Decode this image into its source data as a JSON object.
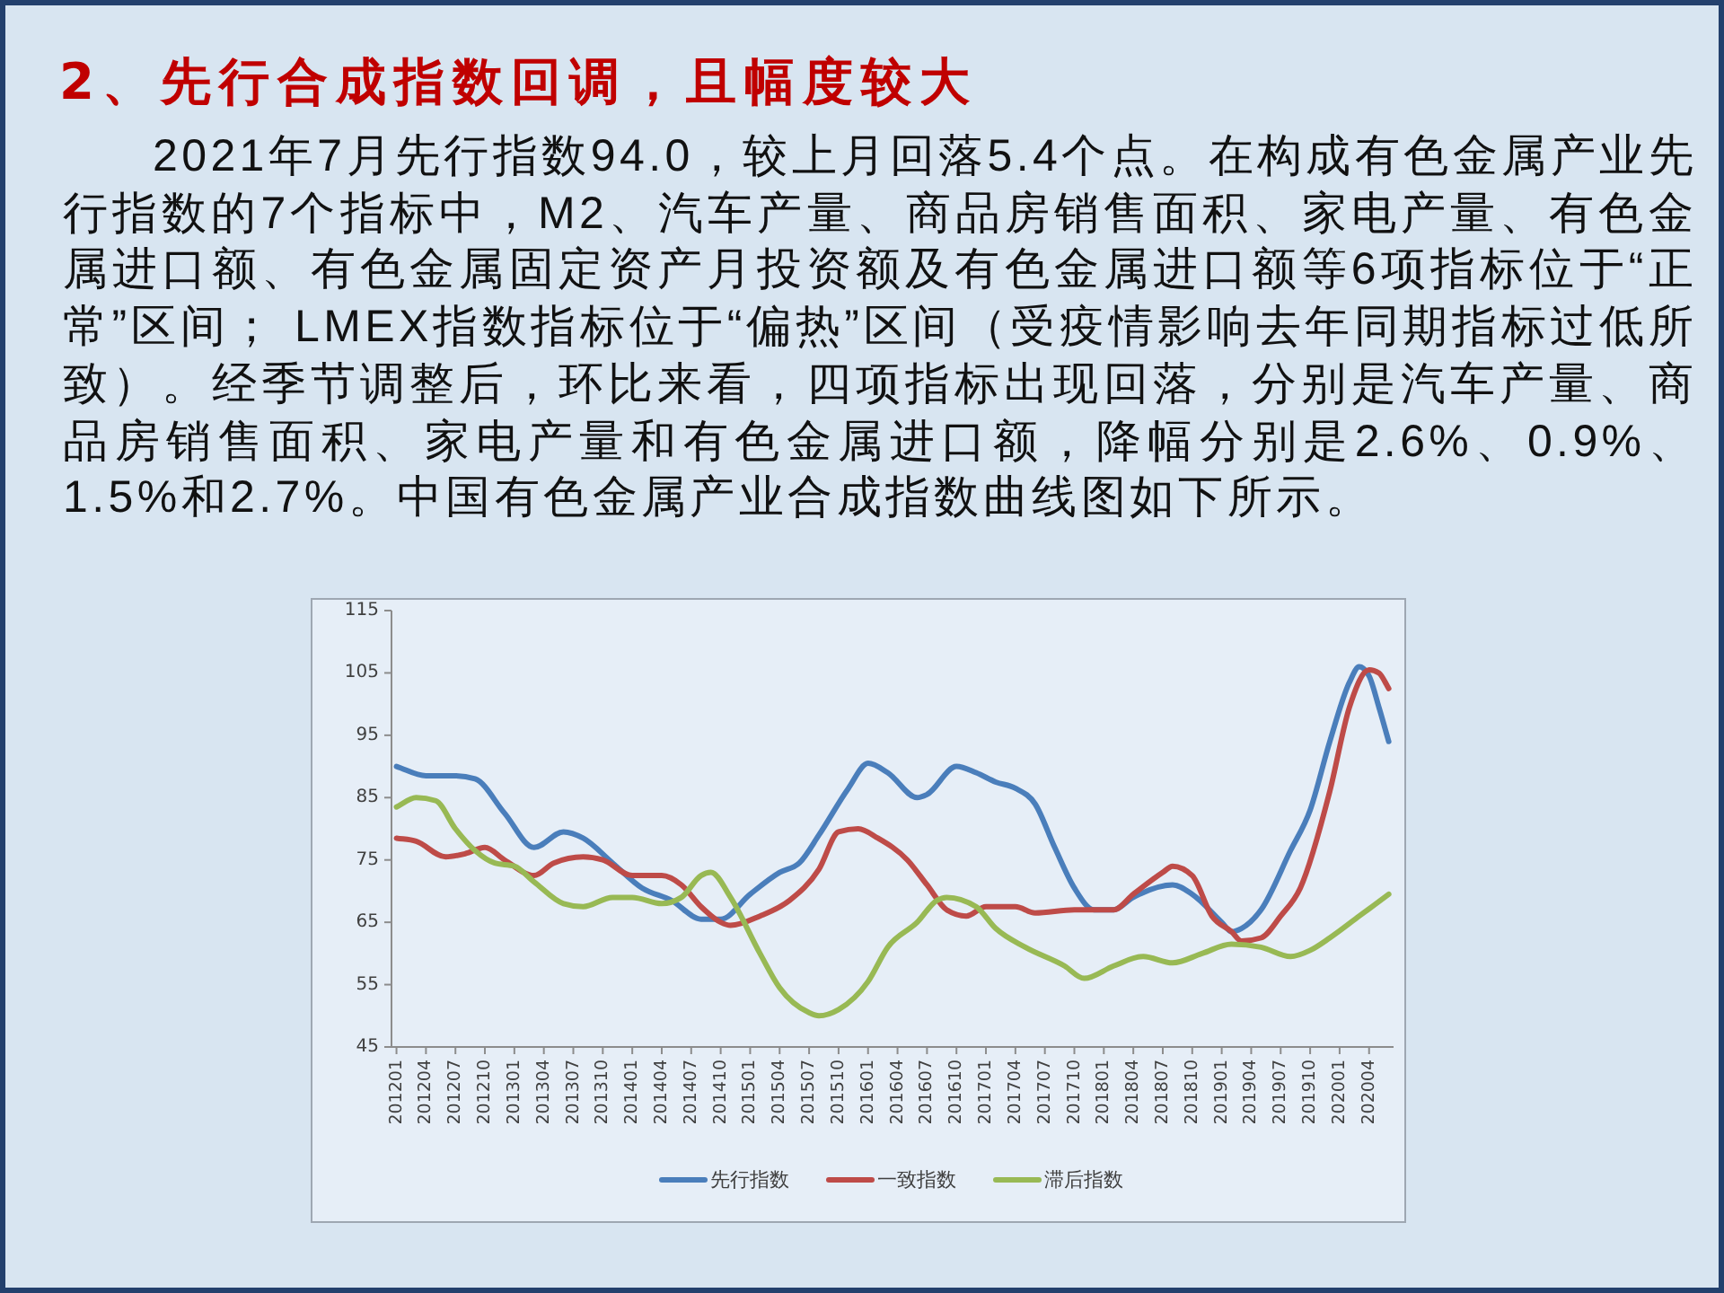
{
  "chart_data": {
    "type": "line",
    "title": "2、先行合成指数回调，且幅度较大",
    "annotations": [
      "2021年7月先行指数94.0，较上月回落5.4个点。在构成有色金属产业先行指数的7个指标中，M2、汽车产量、商品房销售面积、家电产量、有色金属进口额、有色金属固定资产月投资额及有色金属进口额等6项指标位于“正常”区间； LMEX指数指标位于“偏热”区间（受疫情影响去年同期指标过低所致）。经季节调整后，环比来看，四项指标出现回落，分别是汽车产量、商品房销售面积、家电产量和有色金属进口额，降幅分别是2.6%、0.9%、1.5%和2.7%。中国有色金属产业合成指数曲线图如下所示。"
    ],
    "xlim": [
      "2011-12-16",
      "2020-06-16"
    ],
    "xticks": [
      {
        "value": "2012-01",
        "label": "201201"
      },
      {
        "value": "2012-04",
        "label": "201204"
      },
      {
        "value": "2012-07",
        "label": "201207"
      },
      {
        "value": "2012-10",
        "label": "201210"
      },
      {
        "value": "2013-01",
        "label": "201301"
      },
      {
        "value": "2013-04",
        "label": "201304"
      },
      {
        "value": "2013-07",
        "label": "201307"
      },
      {
        "value": "2013-10",
        "label": "201310"
      },
      {
        "value": "2014-01",
        "label": "201401"
      },
      {
        "value": "2014-04",
        "label": "201404"
      },
      {
        "value": "2014-07",
        "label": "201407"
      },
      {
        "value": "2014-10",
        "label": "201410"
      },
      {
        "value": "2015-01",
        "label": "201501"
      },
      {
        "value": "2015-04",
        "label": "201504"
      },
      {
        "value": "2015-07",
        "label": "201507"
      },
      {
        "value": "2015-10",
        "label": "201510"
      },
      {
        "value": "2016-01",
        "label": "201601"
      },
      {
        "value": "2016-04",
        "label": "201604"
      },
      {
        "value": "2016-07",
        "label": "201607"
      },
      {
        "value": "2016-10",
        "label": "201610"
      },
      {
        "value": "2017-01",
        "label": "201701"
      },
      {
        "value": "2017-04",
        "label": "201704"
      },
      {
        "value": "2017-07",
        "label": "201707"
      },
      {
        "value": "2017-10",
        "label": "201710"
      },
      {
        "value": "2018-01",
        "label": "201801"
      },
      {
        "value": "2018-04",
        "label": "201804"
      },
      {
        "value": "2018-07",
        "label": "201807"
      },
      {
        "value": "2018-10",
        "label": "201810"
      },
      {
        "value": "2019-01",
        "label": "201901"
      },
      {
        "value": "2019-04",
        "label": "201904"
      },
      {
        "value": "2019-07",
        "label": "201907"
      },
      {
        "value": "2019-10",
        "label": "201910"
      },
      {
        "value": "2020-01",
        "label": "202001"
      },
      {
        "value": "2020-04",
        "label": "202004"
      }
    ],
    "ylim": [
      45,
      115
    ],
    "yticks": [
      45,
      55,
      65,
      75,
      85,
      95,
      105,
      115
    ],
    "legend": "bottom",
    "series": [
      {
        "name": "先行指数",
        "color": "#4a7ebb",
        "x": [
          "2012-01",
          "2012-04",
          "2012-07",
          "2012-09",
          "2012-12",
          "2013-03",
          "2013-06",
          "2013-08",
          "2013-11",
          "2014-02",
          "2014-05",
          "2014-08",
          "2014-10",
          "2015-01",
          "2015-04",
          "2015-06",
          "2015-08",
          "2015-11",
          "2016-01",
          "2016-03",
          "2016-06",
          "2016-07",
          "2016-10",
          "2016-12",
          "2017-02",
          "2017-04",
          "2017-06",
          "2017-08",
          "2017-10",
          "2017-12",
          "2018-02",
          "2018-04",
          "2018-08",
          "2018-10",
          "2019-01",
          "2019-02",
          "2019-03",
          "2019-05",
          "2019-08",
          "2019-10",
          "2019-12",
          "2020-02",
          "2020-03",
          "2020-04",
          "2020-05",
          "2020-06"
        ],
        "values": [
          90,
          88.5,
          88.5,
          88,
          82.5,
          77,
          79.5,
          78.5,
          74.5,
          70.5,
          68.5,
          65.5,
          65.5,
          69.5,
          73,
          74.5,
          79,
          86.5,
          90.5,
          89,
          85,
          85.5,
          90,
          89,
          87.5,
          86.5,
          84,
          77,
          70.5,
          67,
          67,
          69,
          71,
          69.5,
          65,
          63.5,
          64,
          67,
          76.5,
          83,
          94,
          103.5,
          106,
          104.5,
          99.5,
          94
        ]
      },
      {
        "name": "一致指数",
        "color": "#be4b48",
        "x": [
          "2012-01",
          "2012-03",
          "2012-06",
          "2012-08",
          "2012-10",
          "2012-12",
          "2013-03",
          "2013-05",
          "2013-08",
          "2013-10",
          "2014-01",
          "2014-04",
          "2014-06",
          "2014-08",
          "2014-10",
          "2014-11",
          "2015-02",
          "2015-05",
          "2015-08",
          "2015-10",
          "2015-12",
          "2016-02",
          "2016-05",
          "2016-07",
          "2016-09",
          "2016-11",
          "2017-01",
          "2017-04",
          "2017-06",
          "2017-10",
          "2018-02",
          "2018-04",
          "2018-07",
          "2018-08",
          "2018-10",
          "2018-12",
          "2019-02",
          "2019-03",
          "2019-05",
          "2019-07",
          "2019-09",
          "2019-12",
          "2020-02",
          "2020-04",
          "2020-05",
          "2020-06"
        ],
        "values": [
          78.5,
          78,
          75.5,
          76,
          77,
          75,
          72.5,
          74.5,
          75.5,
          75,
          72.5,
          72.5,
          71,
          67.5,
          65,
          64.5,
          66,
          68.5,
          73.5,
          79.5,
          80,
          78.5,
          75,
          71,
          67,
          66,
          67.5,
          67.5,
          66.5,
          67,
          67,
          69.5,
          73,
          74,
          72.5,
          66,
          63.5,
          62,
          62.5,
          66,
          70.5,
          86,
          99.5,
          105.5,
          105,
          102.5
        ]
      },
      {
        "name": "滞后指数",
        "color": "#98b954",
        "x": [
          "2012-01",
          "2012-03",
          "2012-05",
          "2012-07",
          "2012-09",
          "2012-11",
          "2013-01",
          "2013-03",
          "2013-06",
          "2013-08",
          "2013-11",
          "2014-01",
          "2014-04",
          "2014-06",
          "2014-08",
          "2014-09",
          "2014-11",
          "2015-02",
          "2015-04",
          "2015-07",
          "2015-08",
          "2015-10",
          "2016-01",
          "2016-03",
          "2016-06",
          "2016-08",
          "2016-09",
          "2016-12",
          "2017-02",
          "2017-05",
          "2017-09",
          "2017-11",
          "2018-02",
          "2018-05",
          "2018-08",
          "2018-11",
          "2019-02",
          "2019-05",
          "2019-08",
          "2019-10",
          "2019-12",
          "2020-03",
          "2020-06"
        ],
        "values": [
          83.5,
          85,
          84.5,
          80,
          76.5,
          74.5,
          74,
          71.5,
          68,
          67.5,
          69,
          69,
          68,
          69,
          72.5,
          73,
          69,
          60,
          54.5,
          50.5,
          50,
          51,
          55.5,
          61,
          65,
          68.5,
          69,
          67.5,
          64,
          61,
          58,
          56,
          58,
          59.5,
          58.5,
          60,
          61.5,
          61,
          59.5,
          60.5,
          62.5,
          66,
          69.5
        ]
      }
    ]
  }
}
